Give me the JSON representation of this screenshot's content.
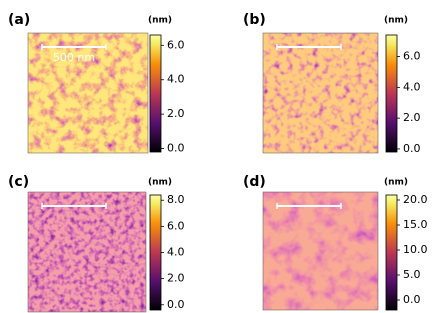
{
  "panels": [
    {
      "label": "(a)",
      "unit": "(nm)",
      "scale_bar_label": "500 nm",
      "colorbar": {
        "lim": [
          -0.2,
          6.6
        ],
        "ticks": [
          {
            "value": 0,
            "label": "0.0"
          },
          {
            "value": 2,
            "label": "2.0"
          },
          {
            "value": 4,
            "label": "4.0"
          },
          {
            "value": 6,
            "label": "6.0"
          }
        ]
      }
    },
    {
      "label": "(b)",
      "unit": "(nm)",
      "colorbar": {
        "lim": [
          -0.2,
          7.4
        ],
        "ticks": [
          {
            "value": 0,
            "label": "0.0"
          },
          {
            "value": 2,
            "label": "2.0"
          },
          {
            "value": 4,
            "label": "4.0"
          },
          {
            "value": 6,
            "label": "6.0"
          }
        ]
      }
    },
    {
      "label": "(c)",
      "unit": "(nm)",
      "colorbar": {
        "lim": [
          -0.4,
          8.4
        ],
        "ticks": [
          {
            "value": 0,
            "label": "0.0"
          },
          {
            "value": 2,
            "label": "2.0"
          },
          {
            "value": 4,
            "label": "4.0"
          },
          {
            "value": 6,
            "label": "6.0"
          },
          {
            "value": 8,
            "label": "8.0"
          }
        ]
      }
    },
    {
      "label": "(d)",
      "unit": "(nm)",
      "colorbar": {
        "lim": [
          -2,
          21
        ],
        "ticks": [
          {
            "value": 0,
            "label": "0.0"
          },
          {
            "value": 5,
            "label": "5.0"
          },
          {
            "value": 10,
            "label": "10.0"
          },
          {
            "value": 15,
            "label": "15.0"
          },
          {
            "value": 20,
            "label": "20.0"
          }
        ]
      }
    }
  ]
}
